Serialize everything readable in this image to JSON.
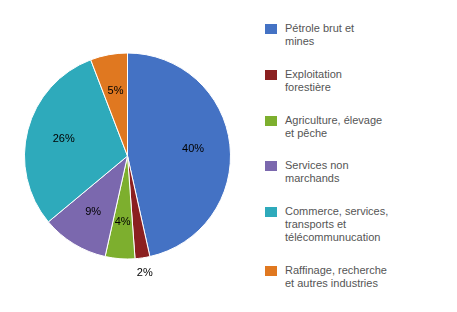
{
  "chart_data": {
    "type": "pie",
    "categories": [
      "Pétrole brut et\nmines",
      "Exploitation\nforestière",
      "Agriculture, élevage\net pêche",
      "Services non\nmarchands",
      "Commerce, services,\ntransports et\ntélécommunucation",
      "Raffinage, recherche\net autres industries"
    ],
    "values": [
      40,
      2,
      4,
      9,
      26,
      5
    ],
    "value_labels": [
      "40%",
      "2%",
      "4%",
      "9%",
      "26%",
      "5%"
    ],
    "colors": [
      "#4472C4",
      "#8B2020",
      "#7DAF2E",
      "#7B68AE",
      "#2EAABB",
      "#E07820"
    ],
    "data_labels": true,
    "legend": "right"
  }
}
